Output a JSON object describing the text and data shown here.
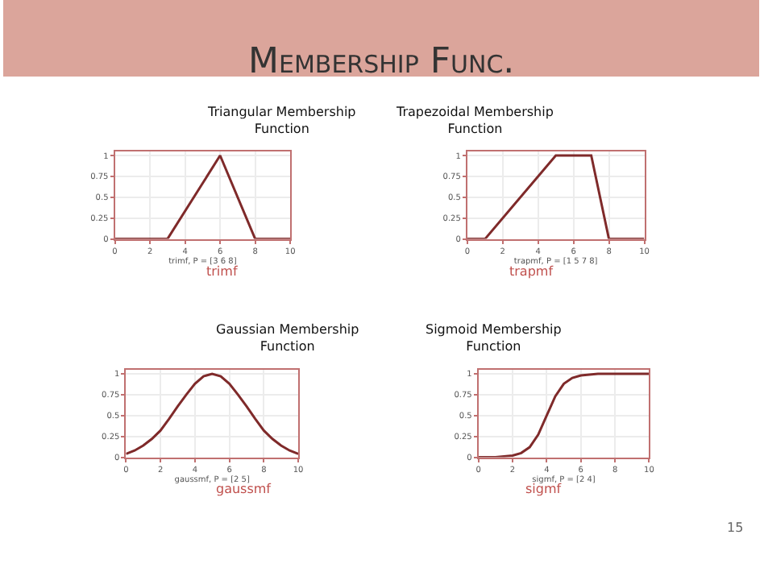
{
  "chart_data": [
    {
      "type": "other",
      "title": "Membership Func.",
      "annotations": [
        "15"
      ]
    },
    {
      "type": "line",
      "title": "Triangular Membership Function",
      "xlabel": "trimf, P = [3 6 8]",
      "annotations": [
        "trimf"
      ],
      "grid": true,
      "xlim": [
        0,
        10
      ],
      "ylim": [
        0,
        1.05
      ],
      "xticks": [
        0,
        2,
        4,
        6,
        8,
        10
      ],
      "yticks": [
        0,
        0.25,
        0.5,
        0.75,
        1
      ],
      "x": [
        0,
        3,
        6,
        8,
        10
      ],
      "series": [
        {
          "color": "#7f2a2a",
          "values": [
            0,
            0,
            1,
            0,
            0
          ]
        }
      ]
    },
    {
      "type": "line",
      "title": "Trapezoidal Membership Function",
      "xlabel": "trapmf, P = [1 5 7 8]",
      "annotations": [
        "trapmf"
      ],
      "grid": true,
      "xlim": [
        0,
        10
      ],
      "ylim": [
        0,
        1.05
      ],
      "xticks": [
        0,
        2,
        4,
        6,
        8,
        10
      ],
      "yticks": [
        0,
        0.25,
        0.5,
        0.75,
        1
      ],
      "x": [
        0,
        1,
        5,
        7,
        8,
        10
      ],
      "series": [
        {
          "color": "#7f2a2a",
          "values": [
            0,
            0,
            1,
            1,
            0,
            0
          ]
        }
      ]
    },
    {
      "type": "line",
      "title": "Gaussian Membership Function",
      "xlabel": "gaussmf, P = [2 5]",
      "annotations": [
        "gaussmf"
      ],
      "grid": true,
      "xlim": [
        0,
        10
      ],
      "ylim": [
        0,
        1.05
      ],
      "xticks": [
        0,
        2,
        4,
        6,
        8,
        10
      ],
      "yticks": [
        0,
        0.25,
        0.5,
        0.75,
        1
      ],
      "x": [
        0,
        0.5,
        1,
        1.5,
        2,
        2.5,
        3,
        3.5,
        4,
        4.5,
        5,
        5.5,
        6,
        6.5,
        7,
        7.5,
        8,
        8.5,
        9,
        9.5,
        10
      ],
      "series": [
        {
          "color": "#7f2a2a",
          "values": [
            0.04,
            0.08,
            0.14,
            0.22,
            0.32,
            0.46,
            0.61,
            0.75,
            0.88,
            0.97,
            1,
            0.97,
            0.88,
            0.75,
            0.61,
            0.46,
            0.32,
            0.22,
            0.14,
            0.08,
            0.04
          ]
        }
      ]
    },
    {
      "type": "line",
      "title": "Sigmoid Membership Function",
      "xlabel": "sigmf, P = [2 4]",
      "annotations": [
        "sigmf"
      ],
      "grid": true,
      "xlim": [
        0,
        10
      ],
      "ylim": [
        0,
        1.05
      ],
      "xticks": [
        0,
        2,
        4,
        6,
        8,
        10
      ],
      "yticks": [
        0,
        0.25,
        0.5,
        0.75,
        1
      ],
      "x": [
        0,
        1,
        2,
        2.5,
        3,
        3.5,
        4,
        4.5,
        5,
        5.5,
        6,
        6.5,
        7,
        8,
        10
      ],
      "series": [
        {
          "color": "#7f2a2a",
          "values": [
            0,
            0,
            0.02,
            0.05,
            0.12,
            0.27,
            0.5,
            0.73,
            0.88,
            0.95,
            0.98,
            0.99,
            1,
            1,
            1
          ]
        }
      ]
    }
  ]
}
